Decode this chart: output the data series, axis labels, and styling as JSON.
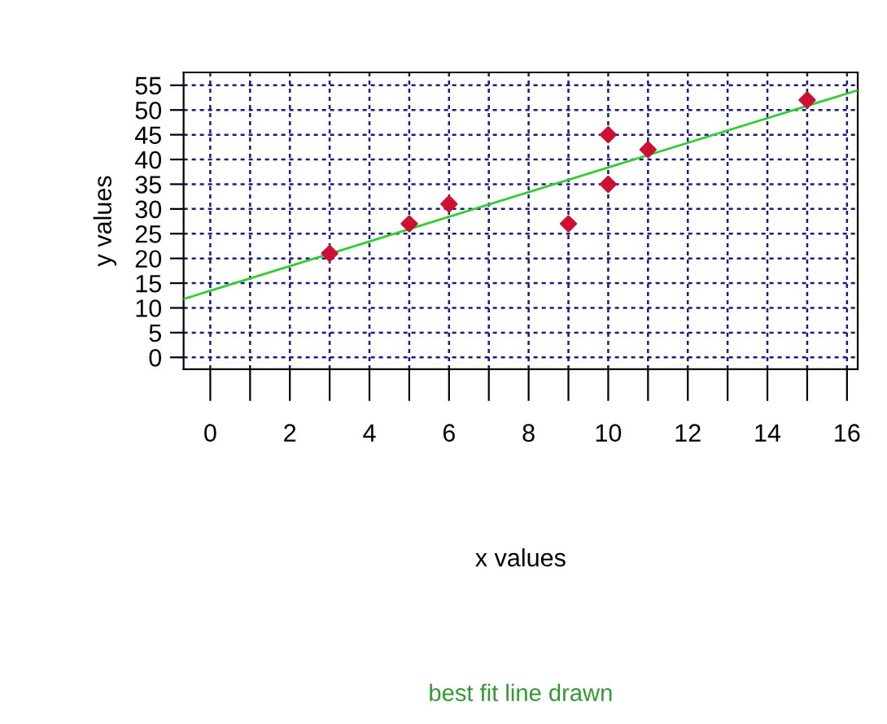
{
  "chart_data": {
    "type": "scatter",
    "xlabel": "x values",
    "ylabel": "y values",
    "annotations": [
      "best fit line drawn"
    ],
    "x": [
      3,
      5,
      6,
      9,
      10,
      10,
      11,
      15
    ],
    "series": [
      {
        "color": "#cc1133",
        "marker": "diamond",
        "values": [
          21,
          27,
          31,
          27,
          45,
          35,
          42,
          52
        ]
      },
      {
        "type": "line",
        "color": "#33cc33",
        "x": [
          -0.67,
          16.27
        ],
        "values": [
          11.8,
          54.0
        ]
      }
    ],
    "xlim": [
      -0.67,
      16.27
    ],
    "ylim": [
      -2.4,
      57.6
    ],
    "xticks": [
      0,
      {
        "value": 1,
        "label": null
      },
      2,
      {
        "value": 3,
        "label": null
      },
      4,
      {
        "value": 5,
        "label": null
      },
      6,
      {
        "value": 7,
        "label": null
      },
      8,
      {
        "value": 9,
        "label": null
      },
      10,
      {
        "value": 11,
        "label": null
      },
      12,
      {
        "value": 13,
        "label": null
      },
      14,
      {
        "value": 15,
        "label": null
      },
      16
    ],
    "yticks": [
      0,
      5,
      10,
      15,
      20,
      25,
      30,
      35,
      40,
      45,
      50,
      55
    ],
    "grid": true
  }
}
